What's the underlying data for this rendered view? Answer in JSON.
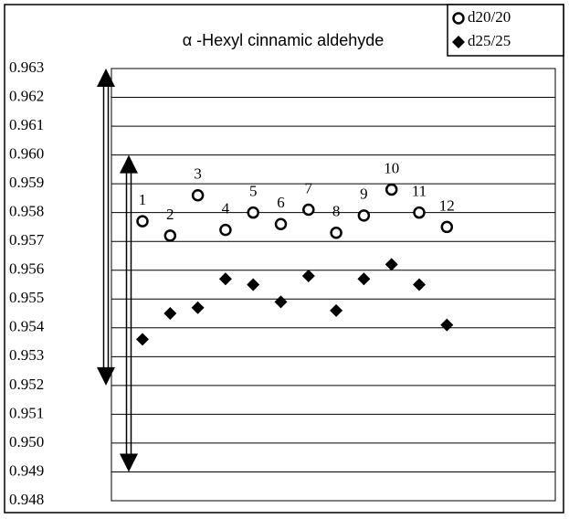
{
  "chart_data": {
    "type": "scatter",
    "title": "α -Hexyl cinnamic aldehyde",
    "categories": [
      "1",
      "2",
      "3",
      "4",
      "5",
      "6",
      "7",
      "8",
      "9",
      "10",
      "11",
      "12"
    ],
    "series": [
      {
        "name": "d20/20",
        "color": "#000000",
        "marker": "open-circle",
        "values": [
          0.9577,
          0.9572,
          0.9586,
          0.9574,
          0.958,
          0.9576,
          0.9581,
          0.9573,
          0.9579,
          0.9588,
          0.958,
          0.9575
        ]
      },
      {
        "name": "d25/25",
        "color": "#000000",
        "marker": "diamond",
        "values": [
          0.9536,
          0.9545,
          0.9547,
          0.9557,
          0.9555,
          0.9549,
          0.9558,
          0.9546,
          0.9557,
          0.9562,
          0.9555,
          0.9541
        ]
      }
    ],
    "ranges": [
      [
        0.963,
        0.952
      ],
      [
        0.96,
        0.949
      ]
    ],
    "ylim": [
      0.948,
      0.963
    ],
    "yticks": [
      0.948,
      0.949,
      {
        "value": 0.95,
        "label": "0.950"
      },
      0.951,
      0.952,
      0.953,
      0.954,
      0.955,
      0.956,
      0.957,
      0.958,
      0.959,
      {
        "value": 0.96,
        "label": "0.960"
      },
      0.961,
      0.962,
      0.963
    ],
    "grid": true,
    "legend": "top-right"
  }
}
